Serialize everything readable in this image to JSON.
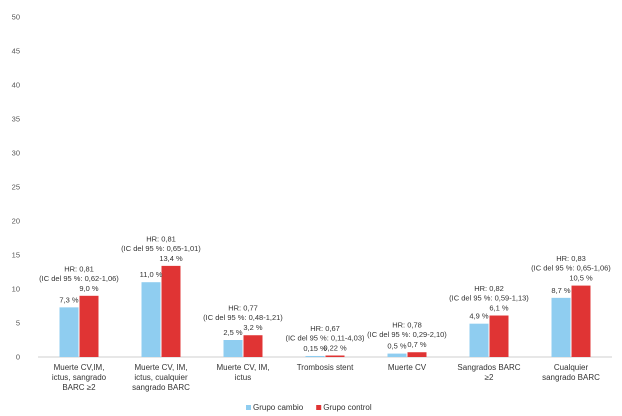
{
  "chart_data": {
    "type": "bar",
    "ylim": [
      0,
      50
    ],
    "yticks": [
      "0",
      "5",
      "10",
      "15",
      "20",
      "25",
      "30",
      "35",
      "40",
      "45",
      "50"
    ],
    "grid": false,
    "legend_position": "bottom-center",
    "categories": [
      [
        "Muerte CV,IM,",
        "ictus, sangrado",
        "BARC ≥2"
      ],
      [
        "Muerte CV, IM,",
        "ictus, cualquier",
        "sangrado BARC"
      ],
      [
        "Muerte CV, IM,",
        "ictus"
      ],
      [
        "Trombosis stent"
      ],
      [
        "Muerte CV"
      ],
      [
        "Sangrados BARC",
        "≥2"
      ],
      [
        "Cualquier",
        "sangrado BARC"
      ]
    ],
    "series": [
      {
        "name": "Grupo cambio",
        "color": "#8fcdf0",
        "values": [
          7.3,
          11.0,
          2.5,
          0.15,
          0.5,
          4.9,
          8.7
        ],
        "labels": [
          "7,3 %",
          "11,0 %",
          "2,5 %",
          "0,15 %",
          "0,5 %",
          "4,9 %",
          "8,7 %"
        ]
      },
      {
        "name": "Grupo control",
        "color": "#e03434",
        "values": [
          9.0,
          13.4,
          3.2,
          0.22,
          0.7,
          6.1,
          10.5
        ],
        "labels": [
          "9,0 %",
          "13,4 %",
          "3,2 %",
          "0,22 %",
          "0,7 %",
          "6,1 %",
          "10,5 %"
        ]
      }
    ],
    "annotations": [
      [
        "HR: 0,81",
        "(IC del 95 %: 0,62-1,06)"
      ],
      [
        "HR: 0,81",
        "(IC del 95 %: 0,65-1,01)"
      ],
      [
        "HR: 0,77",
        "(IC del 95 %: 0,48-1,21)"
      ],
      [
        "HR: 0,67",
        "(IC del 95 %: 0,11-4,03)"
      ],
      [
        "HR: 0,78",
        "(IC del 95 %: 0,29-2,10)"
      ],
      [
        "HR: 0,82",
        "(IC del 95 %: 0,59-1,13)"
      ],
      [
        "HR: 0,83",
        "(IC del 95 %: 0,65-1,06)"
      ]
    ]
  }
}
